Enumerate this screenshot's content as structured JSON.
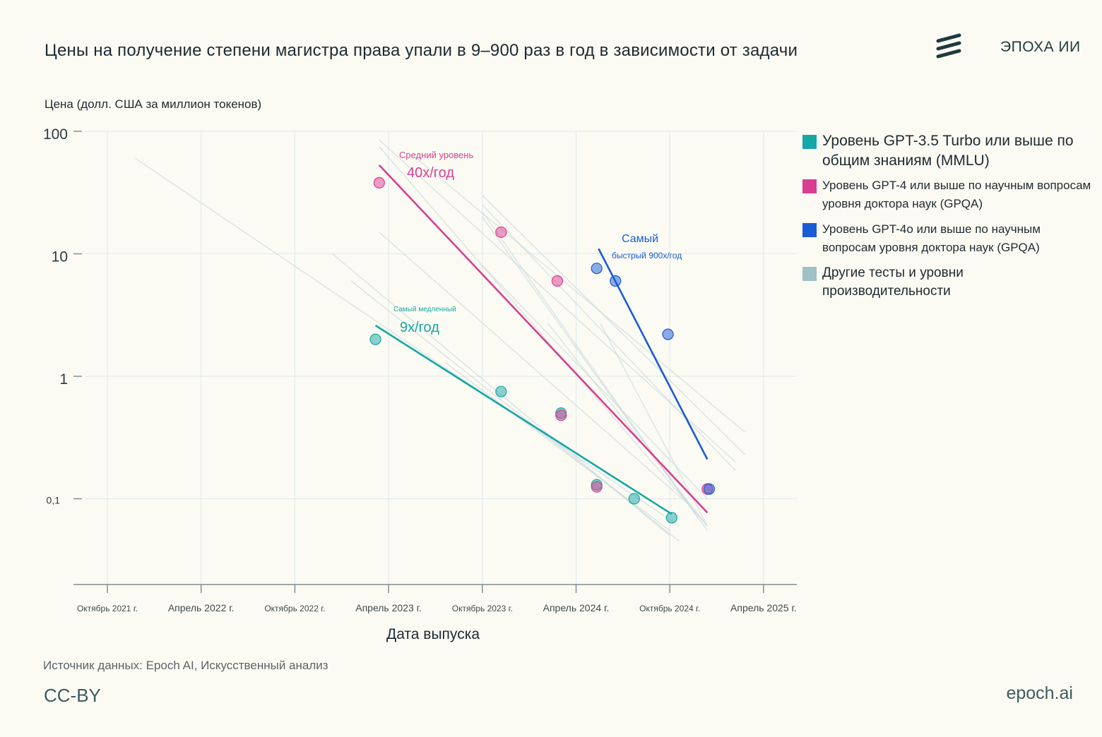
{
  "title": "Цены на получение степени магистра права упали в 9–900 раз в год в зависимости от задачи",
  "brand": "ЭПОХА ИИ",
  "source": "Источник данных: Epoch AI, Искусственный анализ",
  "license": "CC-BY",
  "site": "epoch.ai",
  "colors": {
    "background": "#fcfbf3",
    "teal": "#15a7a6",
    "magenta": "#d93e91",
    "blue": "#1a5bd6",
    "gray": "#c4d4dc",
    "grid": "#e2ebed"
  },
  "legend": [
    {
      "label": "Уровень GPT-3.5 Turbo или выше по общим знаниям (MMLU)",
      "color": "#15a7a6"
    },
    {
      "label": "Уровень GPT-4 или выше по научным вопросам уровня доктора наук (GPQA)",
      "color": "#d93e91"
    },
    {
      "label": "Уровень GPT-4o или выше по научным вопросам уровня доктора наук (GPQA)",
      "color": "#1a5bd6"
    },
    {
      "label": "Другие тесты и уровни производительности",
      "color": "#9fc0c4"
    }
  ],
  "chart_data": {
    "type": "scatter",
    "title": "Цены на получение степени магистра права упали в 9–900 раз в год в зависимости от задачи",
    "xlabel": "Дата выпуска",
    "ylabel": "Цена (долл. США за миллион токенов)",
    "yscale": "log",
    "ylim": [
      0.02,
      100
    ],
    "xlim": [
      "2021-08",
      "2025-05"
    ],
    "x_ticks": [
      {
        "label": "Октябрь 2021 г.",
        "t": 2021.75
      },
      {
        "label": "Апрель 2022 г.",
        "t": 2022.25
      },
      {
        "label": "Октябрь 2022 г.",
        "t": 2022.75
      },
      {
        "label": "Апрель 2023 г.",
        "t": 2023.25
      },
      {
        "label": "Октябрь 2023 г.",
        "t": 2023.75
      },
      {
        "label": "Апрель 2024 г.",
        "t": 2024.25
      },
      {
        "label": "Октябрь 2024 г.",
        "t": 2024.75
      },
      {
        "label": "Апрель 2025 г.",
        "t": 2025.25
      }
    ],
    "y_ticks": [
      {
        "label": "100",
        "v": 100
      },
      {
        "label": "10",
        "v": 10
      },
      {
        "label": "1",
        "v": 1
      },
      {
        "label": "0,1",
        "v": 0.1
      }
    ],
    "series": [
      {
        "name": "Уровень GPT-3.5 Turbo или выше по общим знаниям (MMLU)",
        "color": "#15a7a6",
        "points": [
          {
            "t": 2023.18,
            "v": 2.0
          },
          {
            "t": 2023.85,
            "v": 0.75
          },
          {
            "t": 2024.17,
            "v": 0.5
          },
          {
            "t": 2024.36,
            "v": 0.13
          },
          {
            "t": 2024.56,
            "v": 0.1
          },
          {
            "t": 2024.76,
            "v": 0.07
          }
        ],
        "trend": {
          "t0": 2023.18,
          "v0": 2.6,
          "t1": 2024.76,
          "v1": 0.075
        },
        "annotation": {
          "line1": "Самый медленный",
          "line2": "9x/год"
        }
      },
      {
        "name": "Уровень GPT-4 или выше по научным вопросам уровня доктора наук (GPQA)",
        "color": "#d93e91",
        "points": [
          {
            "t": 2023.2,
            "v": 38
          },
          {
            "t": 2023.85,
            "v": 15
          },
          {
            "t": 2024.15,
            "v": 6
          },
          {
            "t": 2024.17,
            "v": 0.48
          },
          {
            "t": 2024.36,
            "v": 0.125
          },
          {
            "t": 2024.95,
            "v": 0.12
          }
        ],
        "trend": {
          "t0": 2023.2,
          "v0": 53,
          "t1": 2024.95,
          "v1": 0.077
        },
        "annotation": {
          "line1": "Средний уровень",
          "line2": "40x/год"
        }
      },
      {
        "name": "Уровень GPT-4o или выше по научным вопросам уровня доктора наук (GPQA)",
        "color": "#1a5bd6",
        "points": [
          {
            "t": 2024.36,
            "v": 7.6
          },
          {
            "t": 2024.46,
            "v": 6
          },
          {
            "t": 2024.74,
            "v": 2.2
          },
          {
            "t": 2024.96,
            "v": 0.12
          }
        ],
        "trend": {
          "t0": 2024.37,
          "v0": 11,
          "t1": 2024.95,
          "v1": 0.21
        },
        "annotation": {
          "line1": "Самый",
          "line2": "быстрый 900x/год"
        }
      }
    ],
    "other_trends": [
      {
        "t0": 2021.9,
        "v0": 60,
        "t1": 2024.8,
        "v1": 0.06
      },
      {
        "t0": 2022.95,
        "v0": 10,
        "t1": 2024.75,
        "v1": 0.05
      },
      {
        "t0": 2023.2,
        "v0": 15,
        "t1": 2024.85,
        "v1": 0.09
      },
      {
        "t0": 2023.2,
        "v0": 85,
        "t1": 2025.1,
        "v1": 0.2
      },
      {
        "t0": 2023.2,
        "v0": 75,
        "t1": 2024.95,
        "v1": 0.06
      },
      {
        "t0": 2023.4,
        "v0": 60,
        "t1": 2025.15,
        "v1": 0.35
      },
      {
        "t0": 2023.75,
        "v0": 30,
        "t1": 2025.15,
        "v1": 0.23
      },
      {
        "t0": 2023.75,
        "v0": 25,
        "t1": 2025.1,
        "v1": 0.17
      },
      {
        "t0": 2023.75,
        "v0": 22,
        "t1": 2024.9,
        "v1": 0.07
      },
      {
        "t0": 2023.75,
        "v0": 20,
        "t1": 2024.95,
        "v1": 0.055
      },
      {
        "t0": 2023.75,
        "v0": 8,
        "t1": 2024.95,
        "v1": 0.1
      },
      {
        "t0": 2024.1,
        "v0": 2.7,
        "t1": 2024.95,
        "v1": 0.06
      },
      {
        "t0": 2024.38,
        "v0": 2.7,
        "t1": 2024.95,
        "v1": 0.06
      },
      {
        "t0": 2023.05,
        "v0": 6,
        "t1": 2024.8,
        "v1": 0.045
      },
      {
        "t0": 2023.55,
        "v0": 1.3,
        "t1": 2024.75,
        "v1": 0.055
      }
    ]
  }
}
